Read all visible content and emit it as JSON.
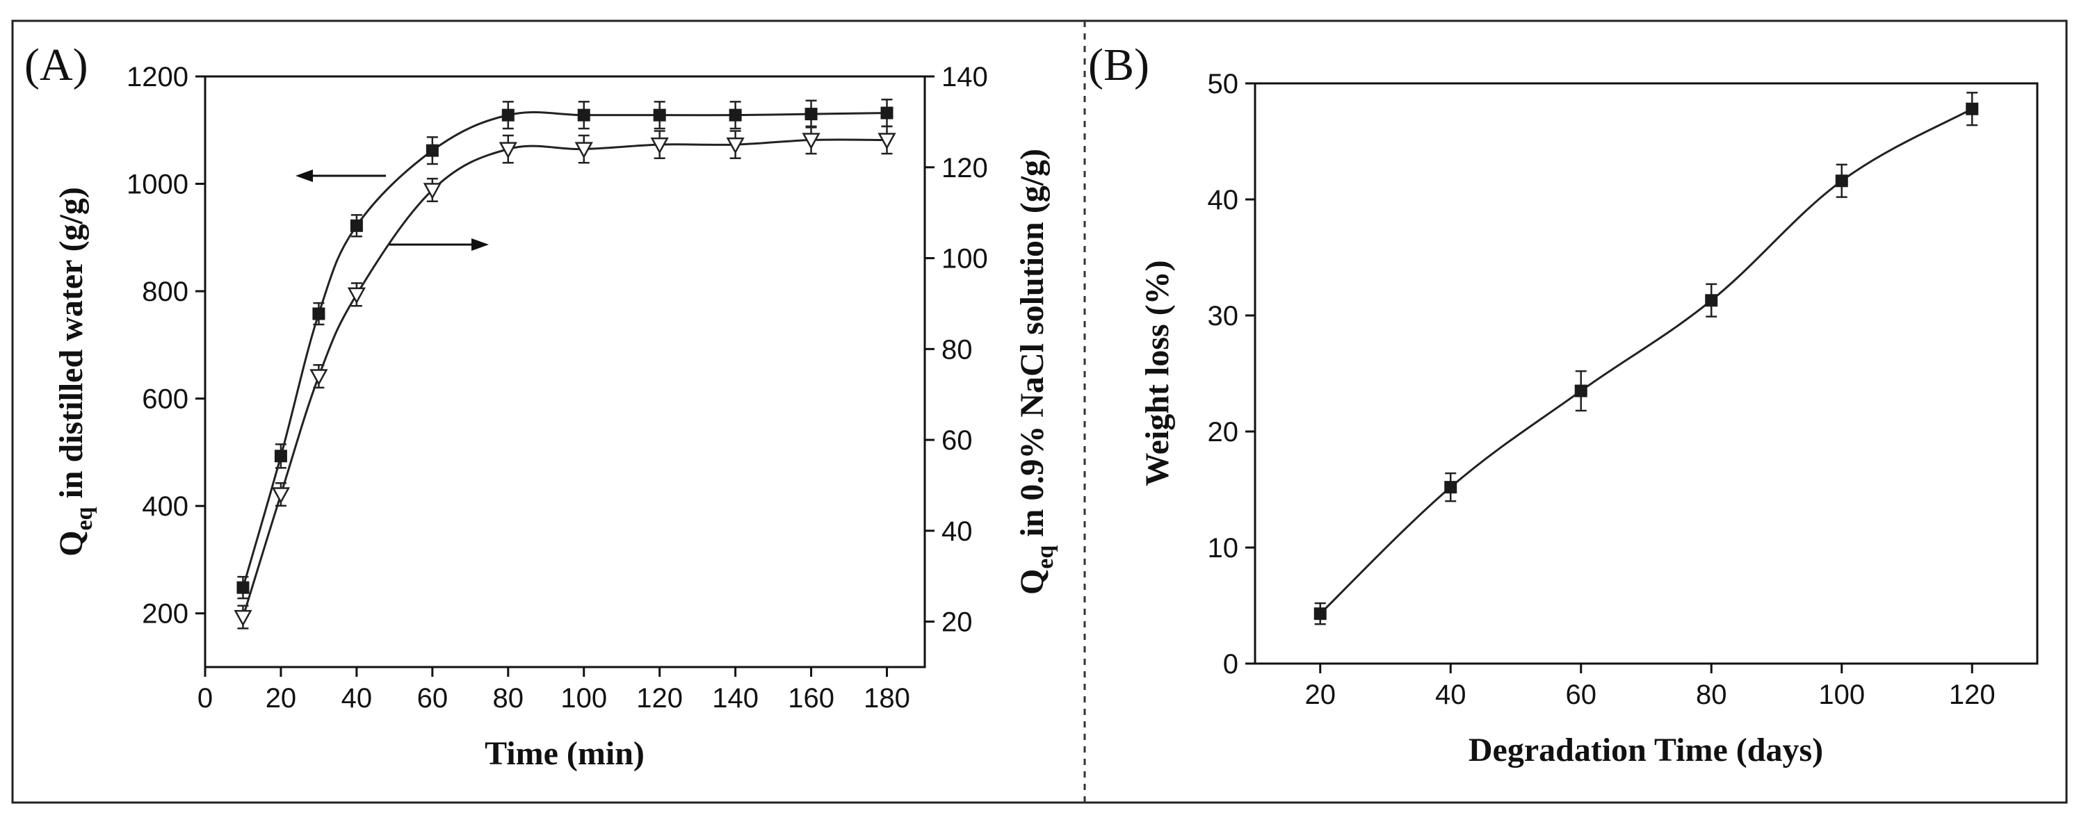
{
  "chart_data": [
    {
      "type": "line",
      "panel_label": "(A)",
      "xlabel": "Time (min)",
      "ylabel_left": {
        "main": "Q",
        "sub": "eq",
        "rest": " in distilled water  (g/g)"
      },
      "ylabel_right": {
        "main": "Q",
        "sub": "eq",
        "rest": " in 0.9% NaCl solution  (g/g)"
      },
      "xlim": [
        0,
        190
      ],
      "ylim_left": [
        100,
        1200
      ],
      "ylim_right": [
        10,
        140
      ],
      "xticks": [
        0,
        20,
        40,
        60,
        80,
        100,
        120,
        140,
        160,
        180
      ],
      "yticks_left": [
        200,
        400,
        600,
        800,
        1000,
        1200
      ],
      "yticks_right": [
        20,
        40,
        60,
        80,
        100,
        120,
        140
      ],
      "grid": false,
      "x": [
        10,
        20,
        30,
        40,
        60,
        80,
        100,
        120,
        140,
        160,
        180
      ],
      "series": [
        {
          "axis": "left",
          "marker": "filled-square",
          "values": [
            248,
            493,
            758,
            922,
            1062,
            1128,
            1128,
            1128,
            1128,
            1130,
            1132
          ],
          "errors": [
            20,
            22,
            20,
            20,
            25,
            25,
            25,
            25,
            25,
            25,
            25
          ]
        },
        {
          "axis": "right",
          "marker": "open-triangle-down",
          "values": [
            21,
            48,
            74,
            92,
            115,
            124,
            124,
            125,
            125,
            126,
            126
          ],
          "errors": [
            2.5,
            2.5,
            2.5,
            2.5,
            2.5,
            3,
            3,
            3,
            3,
            3,
            3
          ]
        }
      ],
      "annotations": [
        {
          "type": "arrow",
          "points_to": "left-axis"
        },
        {
          "type": "arrow",
          "points_to": "right-axis"
        }
      ]
    },
    {
      "type": "line",
      "panel_label": "(B)",
      "xlabel": "Degradation Time (days)",
      "ylabel": "Weight loss (%)",
      "xlim": [
        10,
        130
      ],
      "ylim": [
        0,
        50
      ],
      "xticks": [
        20,
        40,
        60,
        80,
        100,
        120
      ],
      "yticks": [
        0,
        10,
        20,
        30,
        40,
        50
      ],
      "grid": false,
      "x": [
        20,
        40,
        60,
        80,
        100,
        120
      ],
      "series": [
        {
          "marker": "filled-square",
          "values": [
            4.3,
            15.2,
            23.5,
            31.3,
            41.6,
            47.8
          ],
          "errors": [
            0.9,
            1.2,
            1.7,
            1.4,
            1.4,
            1.4
          ]
        }
      ]
    }
  ]
}
